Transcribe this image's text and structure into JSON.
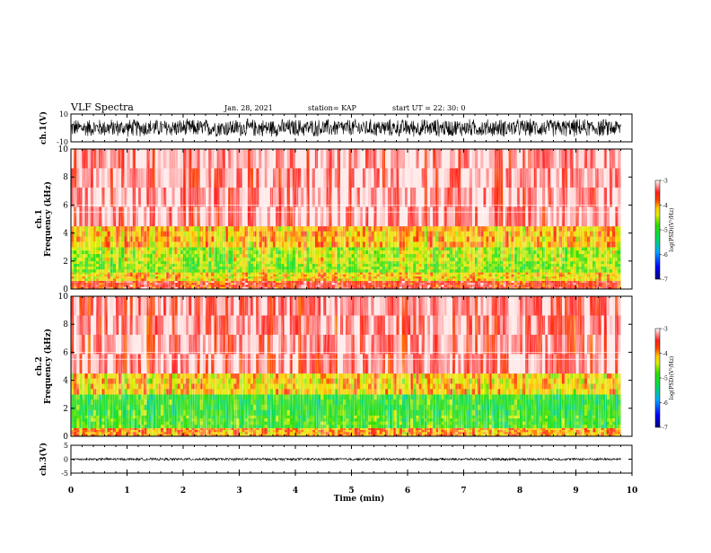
{
  "header": {
    "title": "VLF Spectra",
    "date": "Jan. 28, 2021",
    "station": "station= KAP",
    "start": "start  UT =   22: 30: 0"
  },
  "chart_data": [
    {
      "type": "line",
      "panel": "ch1-waveform",
      "ylabel": "ch.1(V)",
      "ylim": [
        -10,
        10
      ],
      "yticks": [
        "10",
        "-10"
      ],
      "xlim": [
        0,
        10
      ],
      "description_values": {
        "amplitude_range": [
          -8,
          8
        ],
        "x_end": 9.8
      }
    },
    {
      "type": "heatmap",
      "panel": "ch1-spectrogram",
      "ylabel": "ch.1\nFrequency  (kHz)",
      "ylabel_lines": [
        "ch.1",
        "Frequency  (kHz)"
      ],
      "ylim": [
        0,
        10
      ],
      "yticks": [
        "0",
        "2",
        "4",
        "6",
        "8",
        "10"
      ],
      "xlim": [
        0,
        10
      ],
      "x_end": 9.8,
      "bands": [
        {
          "f": [
            0,
            0.6
          ],
          "log_psd": -3.6
        },
        {
          "f": [
            0.6,
            1.2
          ],
          "log_psd": -4.2
        },
        {
          "f": [
            1.2,
            2.0
          ],
          "log_psd": -4.6
        },
        {
          "f": [
            2.0,
            3.0
          ],
          "log_psd": -4.5
        },
        {
          "f": [
            3.0,
            4.5
          ],
          "log_psd": -4.1
        },
        {
          "f": [
            4.5,
            10.0
          ],
          "log_psd": -3.2
        }
      ],
      "colorbar": {
        "label": "log(PSD)(V²/Hz)",
        "range": [
          -7,
          -3
        ],
        "ticks": [
          "-3",
          "-4",
          "-5",
          "-6",
          "-7"
        ]
      }
    },
    {
      "type": "heatmap",
      "panel": "ch2-spectrogram",
      "ylabel": "ch.2\nFrequency  (kHz)",
      "ylabel_lines": [
        "ch.2",
        "Frequency  (kHz)"
      ],
      "ylim": [
        0,
        10
      ],
      "yticks": [
        "0",
        "2",
        "4",
        "6",
        "8",
        "10"
      ],
      "xlim": [
        0,
        10
      ],
      "x_end": 9.8,
      "bands": [
        {
          "f": [
            0,
            0.6
          ],
          "log_psd": -4.0
        },
        {
          "f": [
            0.6,
            1.5
          ],
          "log_psd": -4.9
        },
        {
          "f": [
            1.5,
            3.0
          ],
          "log_psd": -5.0
        },
        {
          "f": [
            3.0,
            4.5
          ],
          "log_psd": -4.2
        },
        {
          "f": [
            4.5,
            10.0
          ],
          "log_psd": -3.3
        }
      ],
      "colorbar": {
        "label": "log(PSD)(V²/Hz)",
        "range": [
          -7,
          -3
        ],
        "ticks": [
          "-3",
          "-4",
          "-5",
          "-6",
          "-7"
        ]
      }
    },
    {
      "type": "line",
      "panel": "ch3-waveform",
      "ylabel": "ch.3(V)",
      "ylim": [
        -5,
        5
      ],
      "yticks": [
        "5",
        "0",
        "-5"
      ],
      "xlim": [
        0,
        10
      ],
      "description_values": {
        "amplitude_range": [
          -0.5,
          0.5
        ],
        "x_end": 9.8
      }
    }
  ],
  "xaxis": {
    "label": "Time  (min)",
    "ticks": [
      "0",
      "1",
      "2",
      "3",
      "4",
      "5",
      "6",
      "7",
      "8",
      "9",
      "10"
    ],
    "range": [
      0,
      10
    ]
  },
  "colors": {
    "high": "#ff2020",
    "mid": "#ffee00",
    "low": "#22dd22",
    "background": "#ffffff"
  }
}
